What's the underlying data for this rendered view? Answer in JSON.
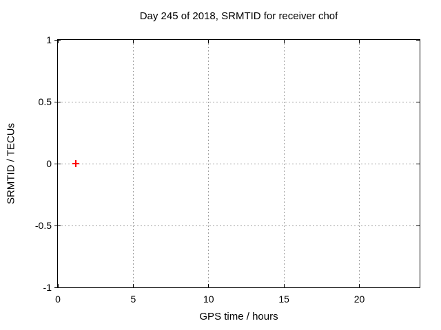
{
  "window": {
    "background": "#ffffff"
  },
  "chart_data": {
    "type": "scatter",
    "title": "Day 245 of 2018, SRMTID for receiver chof",
    "xlabel": "GPS time / hours",
    "ylabel": "SRMTID / TECUs",
    "xlim": [
      0,
      24
    ],
    "ylim": [
      -1,
      1
    ],
    "x_ticks": [
      0,
      5,
      10,
      15,
      20
    ],
    "y_ticks": [
      -1,
      -0.5,
      0,
      0.5,
      1
    ],
    "grid": true,
    "legend": "none",
    "series": [
      {
        "name": "SRMTID",
        "marker": "plus",
        "color": "#ff0000",
        "points": [
          [
            1.2,
            0.0
          ]
        ]
      }
    ]
  },
  "colors": {
    "border": "#000000",
    "grid": "#a0a0a0",
    "text": "#000000",
    "point": "#ff0000"
  }
}
